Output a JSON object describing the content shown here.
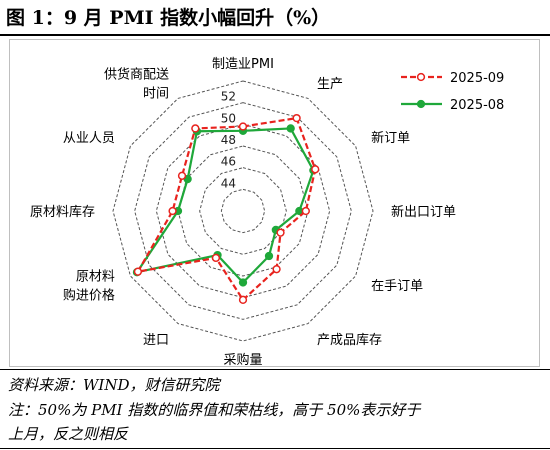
{
  "title": "图 1：9 月 PMI 指数小幅回升（%）",
  "source": "资料来源：WIND，财信研究院",
  "note_line1": "注：50%为 PMI 指数的临界值和荣枯线，高于 50%表示好于",
  "note_line2": "上月，反之则相反",
  "chart_data": {
    "type": "radar",
    "categories": [
      "制造业PMI",
      "生产",
      "新订单",
      "新出口订单",
      "在手订单",
      "产成品库存",
      "采购量",
      "进口",
      "原材料\n购进价格",
      "原材料库存",
      "从业人员",
      "供货商配送\n时间"
    ],
    "rlim": [
      42,
      54
    ],
    "ticks": [
      44,
      46,
      48,
      50,
      52
    ],
    "grid": true,
    "legend_position": "top-right",
    "series": [
      {
        "name": "2025-09",
        "color": "#e8231e",
        "line_style": "dashed",
        "values": [
          49.8,
          51.9,
          49.7,
          47.8,
          46.0,
          48.2,
          50.2,
          47.0,
          53.2,
          48.5,
          48.5,
          50.8
        ]
      },
      {
        "name": "2025-08",
        "color": "#1fa83a",
        "line_style": "solid",
        "values": [
          49.4,
          50.8,
          49.5,
          47.2,
          45.5,
          46.8,
          48.6,
          46.7,
          53.3,
          48.0,
          47.9,
          50.5
        ]
      }
    ]
  }
}
